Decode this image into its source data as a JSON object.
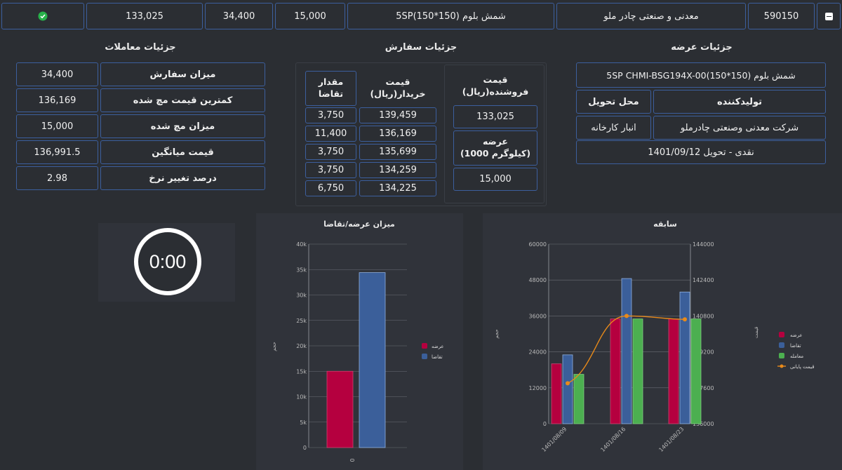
{
  "row": {
    "code": "590150",
    "company": "معدنی و صنعتی چادر ملو",
    "product": "شمش بلوم (150*150)5SP",
    "supply": "15,000",
    "demand": "34,400",
    "price": "133,025"
  },
  "supply_details": {
    "title": "جزئیات عرضه",
    "product_name": "شمش بلوم (150*150)5SP CHMI-BSG194X-00",
    "producer_header": "تولیدکننده",
    "delivery_header": "محل تحویل",
    "producer": "شرکت معدنی وصنعتی چادرملو",
    "delivery_place": "انبار کارخانه",
    "settlement": "نقدی - تحویل 1401/09/12"
  },
  "order_details": {
    "title": "جزئیات سفارش",
    "seller_price_label_1": "قیمت",
    "seller_price_label_2": "فروشنده(ریال)",
    "seller_price": "133,025",
    "supply_label_1": "عرضه",
    "supply_label_2": "(1000 کیلوگرم)",
    "supply_value": "15,000",
    "buyer_price_header_1": "قیمت",
    "buyer_price_header_2": "خریدار(ریال)",
    "demand_qty_header_1": "مقدار",
    "demand_qty_header_2": "تقاضا",
    "rows": [
      {
        "price": "139,459",
        "qty": "3,750"
      },
      {
        "price": "136,169",
        "qty": "11,400"
      },
      {
        "price": "135,699",
        "qty": "3,750"
      },
      {
        "price": "134,259",
        "qty": "3,750"
      },
      {
        "price": "134,225",
        "qty": "6,750"
      }
    ]
  },
  "trade_details": {
    "title": "جزئیات معاملات",
    "rows": [
      {
        "label": "میزان سفارش",
        "value": "34,400"
      },
      {
        "label": "کمترین قیمت مچ شده",
        "value": "136,169"
      },
      {
        "label": "میزان مچ شده",
        "value": "15,000"
      },
      {
        "label": "قیمت میانگین",
        "value": "136,991.5"
      },
      {
        "label": "درصد تغییر نرخ",
        "value": "2.98"
      }
    ]
  },
  "timer": "0:00",
  "colors": {
    "supply": "#b5003f",
    "demand": "#3b5f9a",
    "trade": "#4caf50",
    "final_price": "#e88a1a",
    "border": "#3c5f9e"
  },
  "icons": {
    "status": "check-circle-icon",
    "collapse": "minus-square-icon"
  },
  "chart_data": [
    {
      "type": "bar",
      "title": "میزان عرضه/تقاضا",
      "ylabel": "حجم",
      "categories": [
        "0"
      ],
      "ylim": [
        0,
        40000
      ],
      "yticks": [
        "0",
        "5k",
        "10k",
        "15k",
        "20k",
        "25k",
        "30k",
        "35k",
        "40k"
      ],
      "series": [
        {
          "name": "عرضه",
          "values": [
            15000
          ]
        },
        {
          "name": "تقاضا",
          "values": [
            34400
          ]
        }
      ],
      "legend": "right"
    },
    {
      "type": "bar",
      "title": "سابقه",
      "ylabel": "حجم",
      "y2label": "قیمت",
      "categories": [
        "1401/08/09",
        "1401/08/16",
        "1401/08/23"
      ],
      "ylim": [
        0,
        60000
      ],
      "yticks": [
        "0",
        "12000",
        "24000",
        "36000",
        "48000",
        "60000"
      ],
      "y2lim": [
        136000,
        144000
      ],
      "y2ticks": [
        "136000",
        "137600",
        "139200",
        "140800",
        "142400",
        "144000"
      ],
      "series": [
        {
          "name": "عرضه",
          "values": [
            20000,
            35000,
            35000
          ]
        },
        {
          "name": "تقاضا",
          "values": [
            23000,
            48500,
            44000
          ]
        },
        {
          "name": "معامله",
          "values": [
            16500,
            35000,
            35000
          ]
        },
        {
          "name": "قیمت پایانی",
          "values": [
            137800,
            140800,
            140650
          ],
          "line": true
        }
      ],
      "legend": "right"
    }
  ]
}
